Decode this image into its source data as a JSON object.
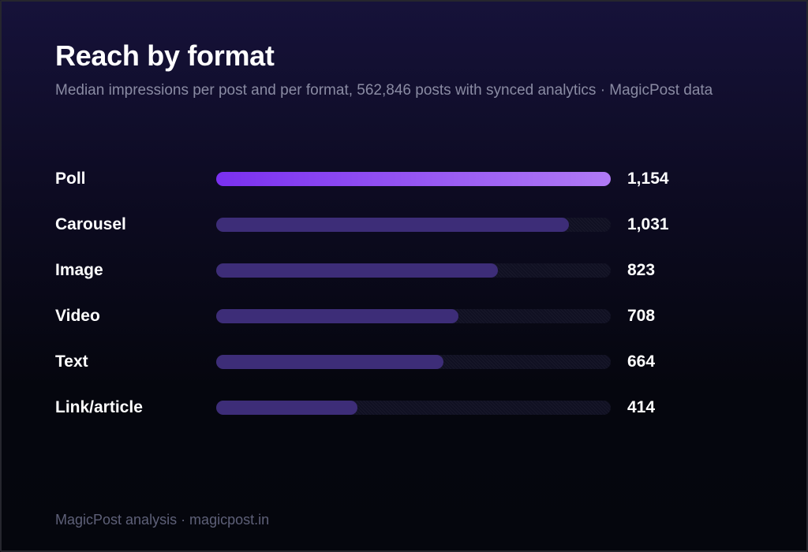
{
  "header": {
    "title": "Reach by format",
    "subtitle": "Median impressions per post and per format, 562,846 posts with synced analytics · MagicPost data"
  },
  "footer": {
    "text": "MagicPost analysis · magicpost.in"
  },
  "colors": {
    "background": "#05060e",
    "accent_start": "#7a30f0",
    "accent_end": "#b07af5",
    "bar": "#3d2d78",
    "track": "#101022"
  },
  "chart_data": {
    "type": "bar",
    "orientation": "horizontal",
    "title": "Reach by format",
    "subtitle": "Median impressions per post and per format, 562,846 posts with synced analytics · MagicPost data",
    "categories": [
      "Poll",
      "Carousel",
      "Image",
      "Video",
      "Text",
      "Link/article"
    ],
    "values": [
      1154,
      1031,
      823,
      708,
      664,
      414
    ],
    "value_labels": [
      "1,154",
      "1,031",
      "823",
      "708",
      "664",
      "414"
    ],
    "xlim": [
      0,
      1154
    ],
    "highlight": "Poll",
    "grid": false,
    "legend": "none"
  }
}
